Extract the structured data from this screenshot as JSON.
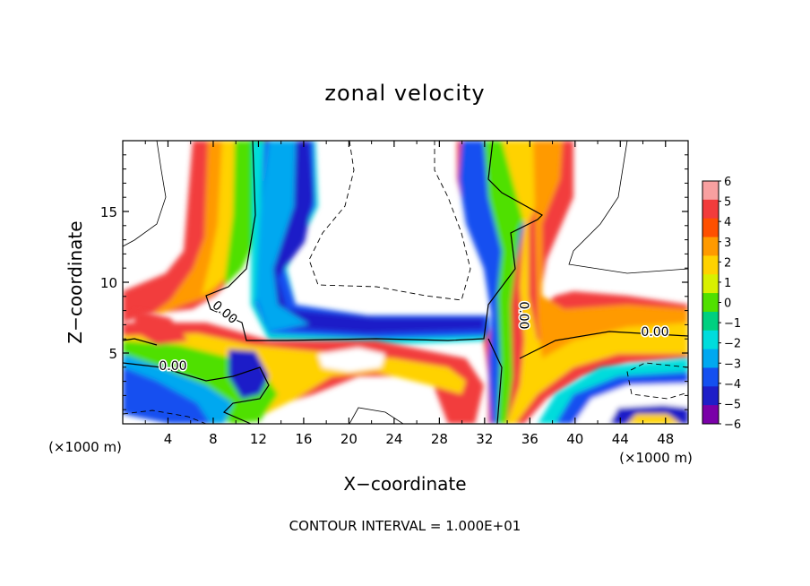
{
  "chart_data": {
    "type": "heatmap",
    "title": "zonal velocity",
    "xlabel": "X−coordinate",
    "ylabel": "Z−coordinate",
    "x_unit": "(×1000 m)",
    "z_unit": "(×1000 m)",
    "xlim": [
      0,
      50
    ],
    "ylim": [
      0,
      20
    ],
    "x_ticks": [
      "4",
      "8",
      "12",
      "16",
      "20",
      "24",
      "28",
      "32",
      "36",
      "40",
      "44",
      "48"
    ],
    "y_ticks": [
      "5",
      "10",
      "15"
    ],
    "colorbar": {
      "labels": [
        "6",
        "5",
        "4",
        "3",
        "2",
        "1",
        "0",
        "−1",
        "−2",
        "−3",
        "−4",
        "−5",
        "−6"
      ],
      "colors": [
        "#f8a0a0",
        "#f23c3c",
        "#ff5000",
        "#ff9a00",
        "#ffd200",
        "#d8f000",
        "#50e000",
        "#00d080",
        "#00dcdc",
        "#00a8f0",
        "#1450f0",
        "#1e1ec8",
        "#7a00a8"
      ]
    },
    "contour_labels": [
      "0.00",
      "0.00",
      "0.00",
      "0.00"
    ],
    "footer": "CONTOUR INTERVAL = 1.000E+01"
  }
}
